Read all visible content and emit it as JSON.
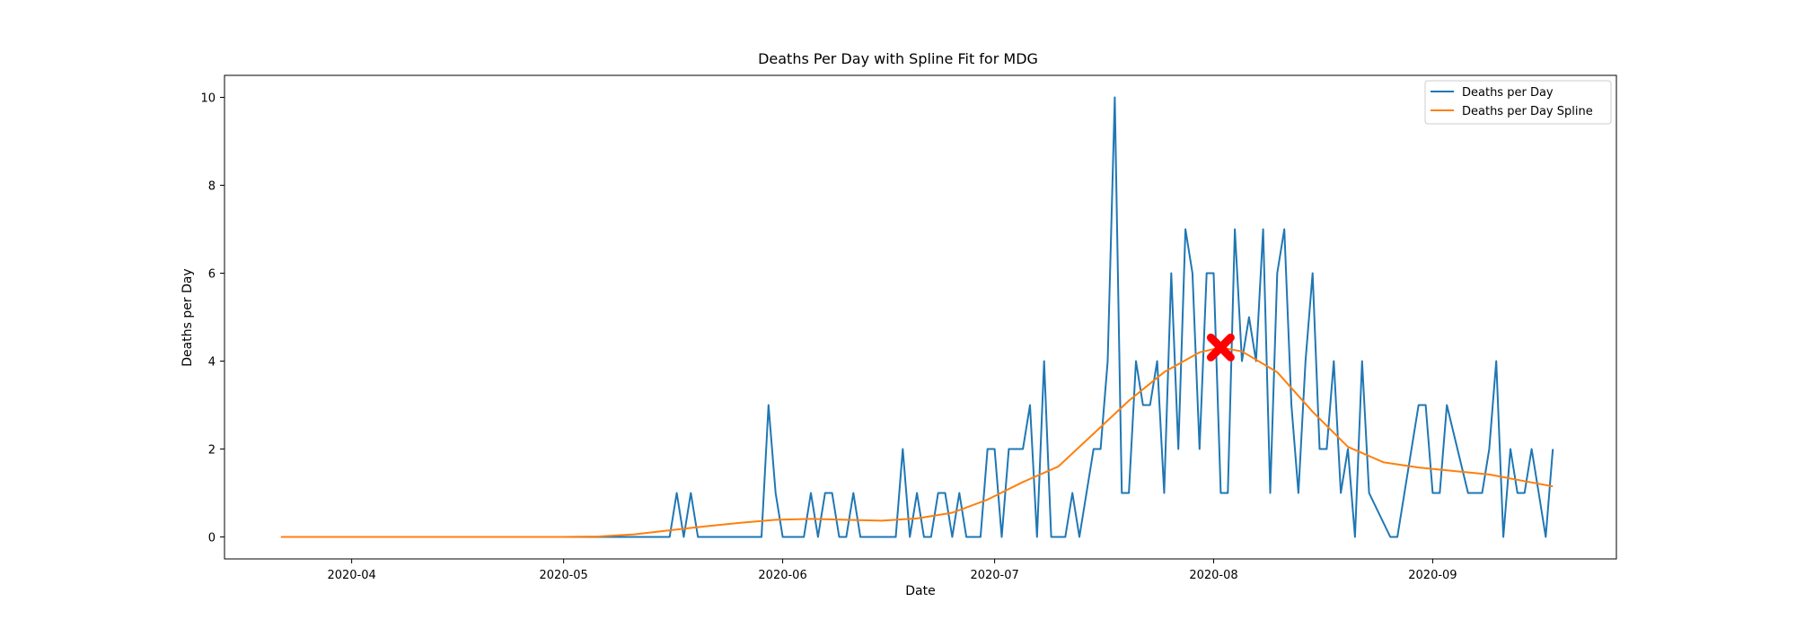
{
  "chart_data": {
    "type": "line",
    "title": "Deaths Per Day with Spline Fit for MDG",
    "xlabel": "Date",
    "ylabel": "Deaths per Day",
    "x_axis": {
      "type": "date",
      "range": [
        "2020-03-14",
        "2020-09-27"
      ],
      "ticks": [
        "2020-04-01",
        "2020-05-01",
        "2020-06-01",
        "2020-07-01",
        "2020-08-01",
        "2020-09-01"
      ],
      "tick_labels": [
        "2020-04",
        "2020-05",
        "2020-06",
        "2020-07",
        "2020-08",
        "2020-09"
      ]
    },
    "y_axis": {
      "range": [
        -0.5,
        10.5
      ],
      "ticks": [
        0,
        2,
        4,
        6,
        8,
        10
      ],
      "tick_labels": [
        "0",
        "2",
        "4",
        "6",
        "8",
        "10"
      ]
    },
    "grid": false,
    "legend": {
      "placement": "top-right",
      "entries": [
        "Deaths per Day",
        "Deaths per Day Spline"
      ]
    },
    "series": [
      {
        "name": "Deaths per Day",
        "color": "#1f77b4",
        "x": [
          "2020-03-22",
          "2020-05-16",
          "2020-05-17",
          "2020-05-18",
          "2020-05-19",
          "2020-05-20",
          "2020-05-21",
          "2020-05-29",
          "2020-05-30",
          "2020-05-31",
          "2020-06-01",
          "2020-06-04",
          "2020-06-05",
          "2020-06-06",
          "2020-06-07",
          "2020-06-08",
          "2020-06-09",
          "2020-06-10",
          "2020-06-11",
          "2020-06-12",
          "2020-06-17",
          "2020-06-18",
          "2020-06-19",
          "2020-06-20",
          "2020-06-21",
          "2020-06-22",
          "2020-06-23",
          "2020-06-24",
          "2020-06-25",
          "2020-06-26",
          "2020-06-27",
          "2020-06-28",
          "2020-06-29",
          "2020-06-30",
          "2020-07-01",
          "2020-07-02",
          "2020-07-03",
          "2020-07-04",
          "2020-07-05",
          "2020-07-06",
          "2020-07-07",
          "2020-07-08",
          "2020-07-09",
          "2020-07-10",
          "2020-07-11",
          "2020-07-12",
          "2020-07-13",
          "2020-07-14",
          "2020-07-15",
          "2020-07-16",
          "2020-07-17",
          "2020-07-18",
          "2020-07-19",
          "2020-07-20",
          "2020-07-21",
          "2020-07-22",
          "2020-07-23",
          "2020-07-24",
          "2020-07-25",
          "2020-07-26",
          "2020-07-27",
          "2020-07-28",
          "2020-07-29",
          "2020-07-30",
          "2020-07-31",
          "2020-08-01",
          "2020-08-02",
          "2020-08-03",
          "2020-08-04",
          "2020-08-05",
          "2020-08-06",
          "2020-08-07",
          "2020-08-08",
          "2020-08-09",
          "2020-08-10",
          "2020-08-11",
          "2020-08-12",
          "2020-08-13",
          "2020-08-14",
          "2020-08-15",
          "2020-08-16",
          "2020-08-17",
          "2020-08-18",
          "2020-08-19",
          "2020-08-20",
          "2020-08-21",
          "2020-08-22",
          "2020-08-23",
          "2020-08-26",
          "2020-08-27",
          "2020-08-30",
          "2020-08-31",
          "2020-09-01",
          "2020-09-02",
          "2020-09-03",
          "2020-09-06",
          "2020-09-07",
          "2020-09-08",
          "2020-09-09",
          "2020-09-10",
          "2020-09-11",
          "2020-09-12",
          "2020-09-13",
          "2020-09-14",
          "2020-09-15",
          "2020-09-16",
          "2020-09-17",
          "2020-09-18"
        ],
        "values": [
          0,
          0,
          1,
          0,
          1,
          0,
          0,
          0,
          3,
          1,
          0,
          0,
          1,
          0,
          1,
          1,
          0,
          0,
          1,
          0,
          0,
          2,
          0,
          1,
          0,
          0,
          1,
          1,
          0,
          1,
          0,
          0,
          0,
          2,
          2,
          0,
          2,
          2,
          2,
          3,
          0,
          4,
          0,
          0,
          0,
          1,
          0,
          1,
          2,
          2,
          4,
          10,
          1,
          1,
          4,
          3,
          3,
          4,
          1,
          6,
          2,
          7,
          6,
          2,
          6,
          6,
          1,
          1,
          7,
          4,
          5,
          4,
          7,
          1,
          6,
          7,
          3,
          1,
          4,
          6,
          2,
          2,
          4,
          1,
          2,
          0,
          4,
          1,
          0,
          0,
          3,
          3,
          1,
          1,
          3,
          1,
          1,
          1,
          2,
          4,
          0,
          2,
          1,
          1,
          2,
          1,
          0,
          2
        ]
      },
      {
        "name": "Deaths per Day Spline",
        "color": "#ff7f0e",
        "x": [
          "2020-03-22",
          "2020-04-15",
          "2020-05-01",
          "2020-05-06",
          "2020-05-11",
          "2020-05-16",
          "2020-05-21",
          "2020-05-26",
          "2020-05-31",
          "2020-06-05",
          "2020-06-10",
          "2020-06-15",
          "2020-06-20",
          "2020-06-25",
          "2020-06-30",
          "2020-07-05",
          "2020-07-10",
          "2020-07-15",
          "2020-07-20",
          "2020-07-25",
          "2020-07-30",
          "2020-08-02",
          "2020-08-05",
          "2020-08-10",
          "2020-08-15",
          "2020-08-20",
          "2020-08-25",
          "2020-08-30",
          "2020-09-04",
          "2020-09-09",
          "2020-09-14",
          "2020-09-18"
        ],
        "values": [
          0,
          0,
          0,
          0.01,
          0.06,
          0.15,
          0.24,
          0.32,
          0.39,
          0.41,
          0.39,
          0.37,
          0.42,
          0.55,
          0.85,
          1.25,
          1.6,
          2.35,
          3.1,
          3.75,
          4.2,
          4.31,
          4.22,
          3.75,
          2.85,
          2.05,
          1.7,
          1.58,
          1.5,
          1.42,
          1.27,
          1.15
        ]
      }
    ],
    "annotations": [
      {
        "type": "marker",
        "shape": "X",
        "color": "#ff0000",
        "x": "2020-08-02",
        "y": 4.31
      }
    ]
  }
}
